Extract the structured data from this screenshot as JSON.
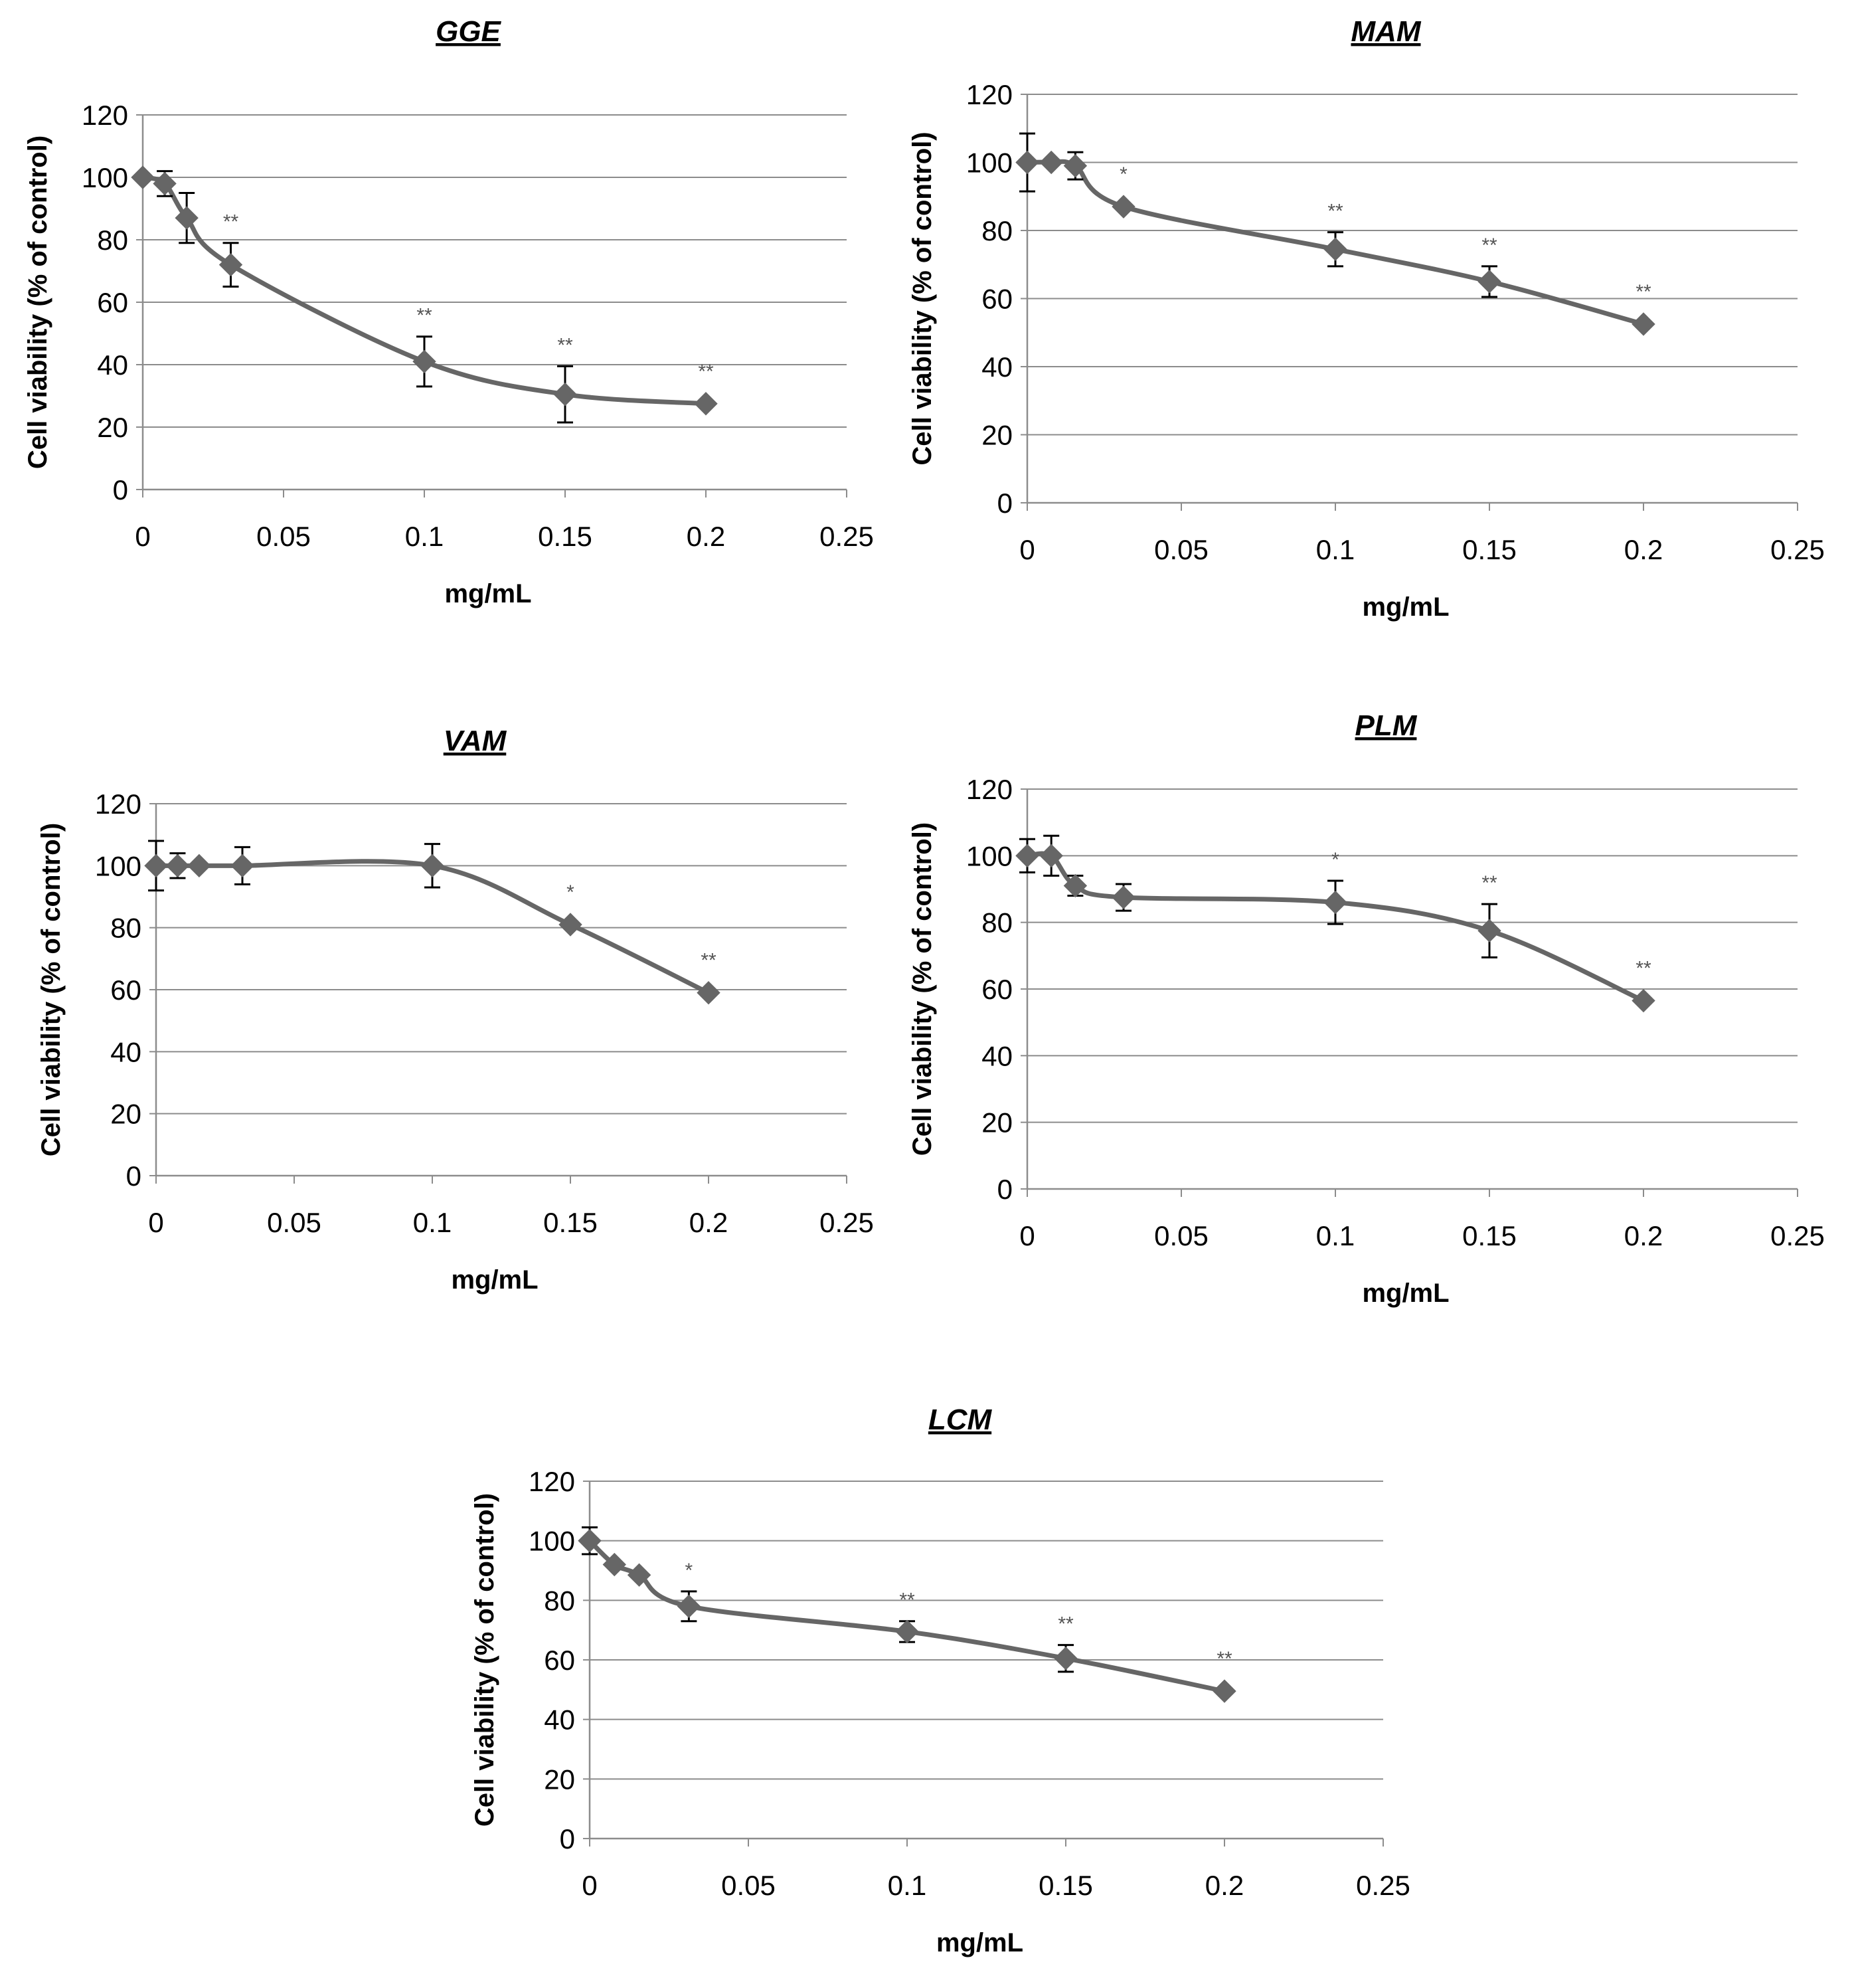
{
  "colors": {
    "series": "#666666",
    "grid": "#8c8c8c",
    "axis": "#8c8c8c",
    "error": "#000000",
    "text": "#000000",
    "sig": "#555555"
  },
  "chart_data": [
    {
      "type": "line",
      "title": "GGE",
      "xlabel": "mg/mL",
      "ylabel": "Cell viability (% of control)",
      "xlim": [
        0,
        0.25
      ],
      "ylim": [
        0,
        120
      ],
      "xticks": [
        "0",
        "0.05",
        "0.1",
        "0.15",
        "0.2",
        "0.25"
      ],
      "yticks": [
        "0",
        "20",
        "40",
        "60",
        "80",
        "100",
        "120"
      ],
      "grid": true,
      "series": [
        {
          "name": "GGE",
          "x": [
            0,
            0.0078,
            0.0156,
            0.03125,
            0.1,
            0.15,
            0.2
          ],
          "y": [
            100,
            98,
            87,
            72,
            41,
            30.5,
            27.5
          ],
          "err": [
            0,
            4,
            8,
            7,
            8,
            9,
            0
          ],
          "sig": [
            "",
            "",
            "",
            "**",
            "**",
            "**",
            "**"
          ]
        }
      ]
    },
    {
      "type": "line",
      "title": "MAM",
      "xlabel": "mg/mL",
      "ylabel": "Cell viability (% of control)",
      "xlim": [
        0,
        0.25
      ],
      "ylim": [
        0,
        120
      ],
      "xticks": [
        "0",
        "0.05",
        "0.1",
        "0.15",
        "0.2",
        "0.25"
      ],
      "yticks": [
        "0",
        "20",
        "40",
        "60",
        "80",
        "100",
        "120"
      ],
      "grid": true,
      "series": [
        {
          "name": "MAM",
          "x": [
            0,
            0.0078,
            0.0156,
            0.03125,
            0.1,
            0.15,
            0.2
          ],
          "y": [
            100,
            100,
            99,
            87,
            74.5,
            65,
            52.5
          ],
          "err": [
            8.5,
            0,
            4,
            0,
            5,
            4.5,
            0
          ],
          "sig": [
            "",
            "",
            "",
            "*",
            "**",
            "**",
            "**"
          ]
        }
      ]
    },
    {
      "type": "line",
      "title": "VAM",
      "xlabel": "mg/mL",
      "ylabel": "Cell viability (% of control)",
      "xlim": [
        0,
        0.25
      ],
      "ylim": [
        0,
        120
      ],
      "xticks": [
        "0",
        "0.05",
        "0.1",
        "0.15",
        "0.2",
        "0.25"
      ],
      "yticks": [
        "0",
        "20",
        "40",
        "60",
        "80",
        "100",
        "120"
      ],
      "grid": true,
      "series": [
        {
          "name": "VAM",
          "x": [
            0,
            0.0078,
            0.0156,
            0.03125,
            0.1,
            0.15,
            0.2
          ],
          "y": [
            100,
            100,
            100,
            100,
            100,
            81,
            59
          ],
          "err": [
            8,
            4,
            0,
            6,
            7,
            0,
            0
          ],
          "sig": [
            "",
            "",
            "",
            "",
            "",
            "*",
            "**"
          ]
        }
      ]
    },
    {
      "type": "line",
      "title": "PLM",
      "xlabel": "mg/mL",
      "ylabel": "Cell viability (% of control)",
      "xlim": [
        0,
        0.25
      ],
      "ylim": [
        0,
        120
      ],
      "xticks": [
        "0",
        "0.05",
        "0.1",
        "0.15",
        "0.2",
        "0.25"
      ],
      "yticks": [
        "0",
        "20",
        "40",
        "60",
        "80",
        "100",
        "120"
      ],
      "grid": true,
      "series": [
        {
          "name": "PLM",
          "x": [
            0,
            0.0078,
            0.0156,
            0.03125,
            0.1,
            0.15,
            0.2
          ],
          "y": [
            100,
            100,
            91,
            87.5,
            86,
            77.5,
            56.5
          ],
          "err": [
            5,
            6,
            3,
            4,
            6.5,
            8,
            0
          ],
          "sig": [
            "",
            "",
            "",
            "",
            "*",
            "**",
            "**"
          ]
        }
      ]
    },
    {
      "type": "line",
      "title": "LCM",
      "xlabel": "mg/mL",
      "ylabel": "Cell viability (% of control)",
      "xlim": [
        0,
        0.25
      ],
      "ylim": [
        0,
        120
      ],
      "xticks": [
        "0",
        "0.05",
        "0.1",
        "0.15",
        "0.2",
        "0.25"
      ],
      "yticks": [
        "0",
        "20",
        "40",
        "60",
        "80",
        "100",
        "120"
      ],
      "grid": true,
      "series": [
        {
          "name": "LCM",
          "x": [
            0,
            0.0078,
            0.0156,
            0.03125,
            0.1,
            0.15,
            0.2
          ],
          "y": [
            100,
            92,
            88.5,
            78,
            69.5,
            60.5,
            49.5
          ],
          "err": [
            4.5,
            0,
            0,
            5,
            3.5,
            4.5,
            0
          ],
          "sig": [
            "",
            "",
            "",
            "*",
            "**",
            "**",
            "**"
          ]
        }
      ]
    }
  ]
}
